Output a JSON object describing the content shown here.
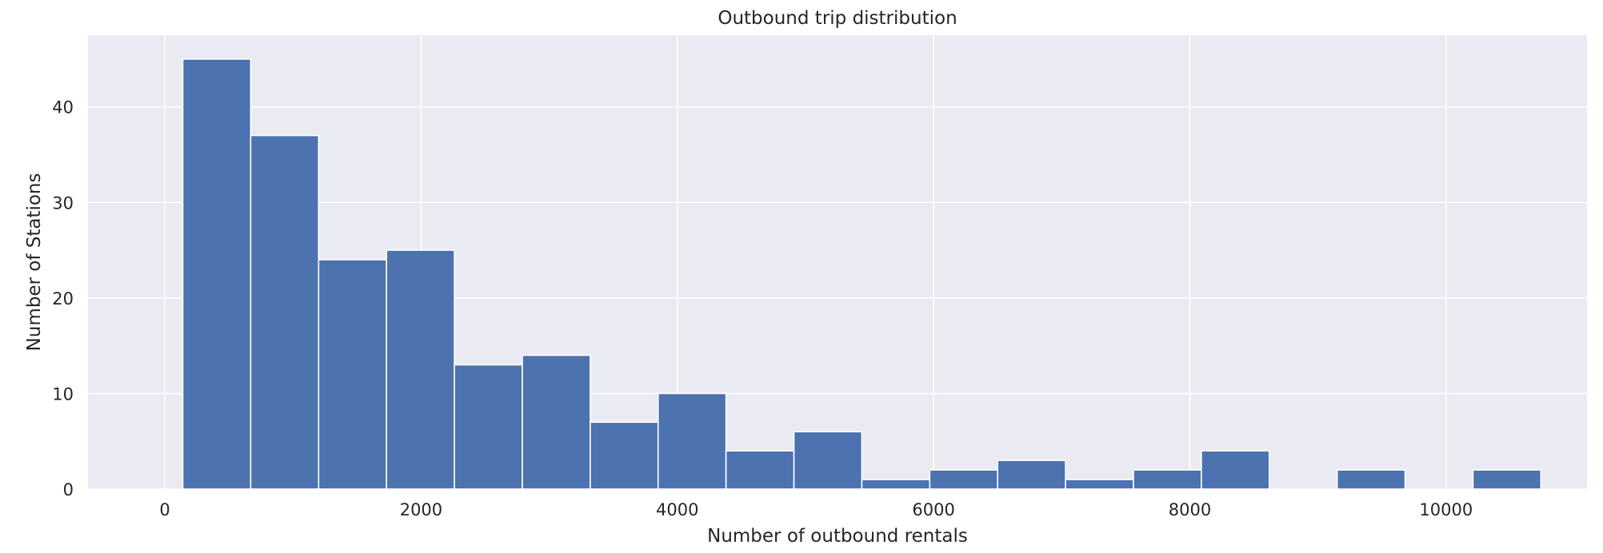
{
  "chart_data": {
    "type": "bar",
    "subtype": "histogram",
    "title": "Outbound trip distribution",
    "xlabel": "Number of outbound rentals",
    "ylabel": "Number of Stations",
    "xlim": [
      -600,
      11100
    ],
    "ylim": [
      0,
      47.5
    ],
    "xticks": [
      0,
      2000,
      4000,
      6000,
      8000,
      10000
    ],
    "xtick_labels": [
      "0",
      "2000",
      "4000",
      "6000",
      "8000",
      "10000"
    ],
    "yticks": [
      0,
      10,
      20,
      30,
      40
    ],
    "ytick_labels": [
      "0",
      "10",
      "20",
      "30",
      "40"
    ],
    "grid": true,
    "colors": {
      "bar": "#4c72b0",
      "plot_bg": "#eaeaf2",
      "grid": "#ffffff"
    },
    "bins": [
      {
        "x0": 140,
        "x1": 670,
        "count": 45
      },
      {
        "x0": 670,
        "x1": 1200,
        "count": 37
      },
      {
        "x0": 1200,
        "x1": 1730,
        "count": 24
      },
      {
        "x0": 1730,
        "x1": 2260,
        "count": 25
      },
      {
        "x0": 2260,
        "x1": 2790,
        "count": 13
      },
      {
        "x0": 2790,
        "x1": 3320,
        "count": 14
      },
      {
        "x0": 3320,
        "x1": 3850,
        "count": 7
      },
      {
        "x0": 3850,
        "x1": 4380,
        "count": 10
      },
      {
        "x0": 4380,
        "x1": 4910,
        "count": 4
      },
      {
        "x0": 4910,
        "x1": 5440,
        "count": 6
      },
      {
        "x0": 5440,
        "x1": 5970,
        "count": 1
      },
      {
        "x0": 5970,
        "x1": 6500,
        "count": 2
      },
      {
        "x0": 6500,
        "x1": 7030,
        "count": 3
      },
      {
        "x0": 7030,
        "x1": 7560,
        "count": 1
      },
      {
        "x0": 7560,
        "x1": 8090,
        "count": 2
      },
      {
        "x0": 8090,
        "x1": 8620,
        "count": 4
      },
      {
        "x0": 8620,
        "x1": 9150,
        "count": 0
      },
      {
        "x0": 9150,
        "x1": 9680,
        "count": 2
      },
      {
        "x0": 9680,
        "x1": 10210,
        "count": 0
      },
      {
        "x0": 10210,
        "x1": 10740,
        "count": 2
      }
    ]
  }
}
